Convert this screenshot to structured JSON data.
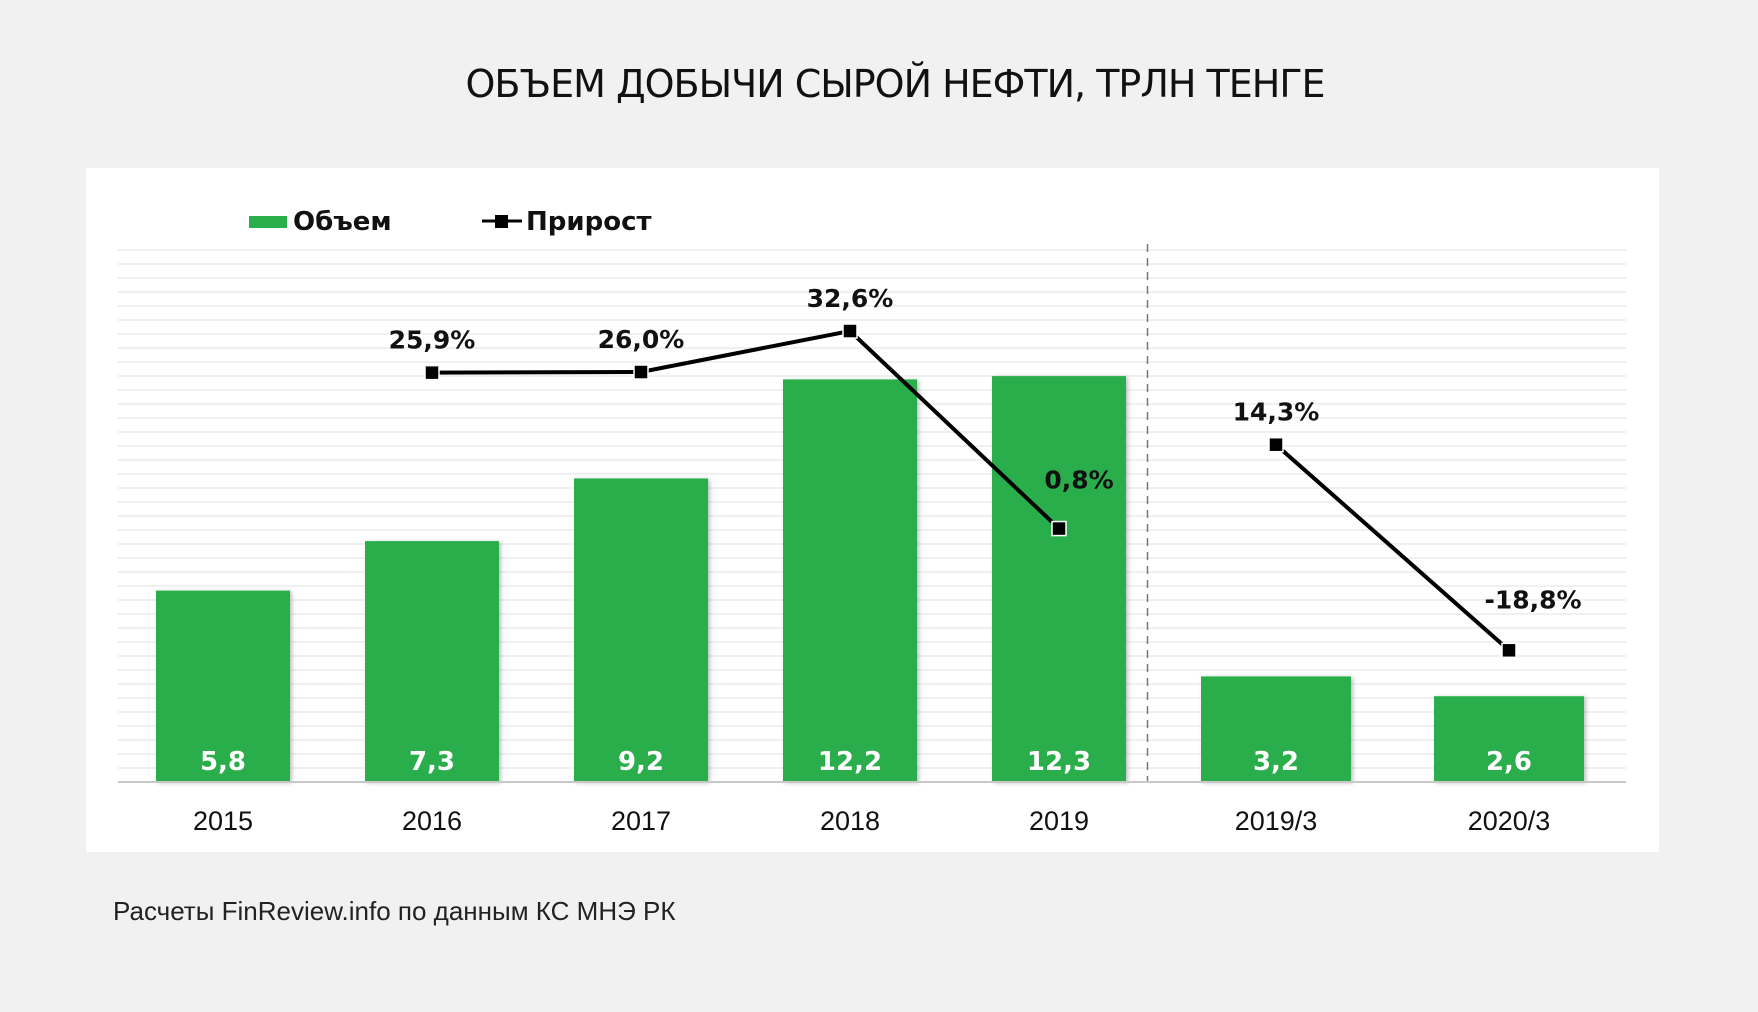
{
  "title": "ОБЪЕМ ДОБЫЧИ СЫРОЙ НЕФТИ, ТРЛН ТЕНГЕ",
  "source": "Расчеты FinReview.info по данным КС МНЭ РК",
  "colors": {
    "bar": "#2bae4c",
    "line": "#000000",
    "background": "#f1f1f1",
    "panel": "#ffffff"
  },
  "chart_data": {
    "type": "bar",
    "categories": [
      "2015",
      "2016",
      "2017",
      "2018",
      "2019",
      "2019/3",
      "2020/3"
    ],
    "ylim": [
      0,
      16
    ],
    "y2lim": [
      -40,
      45
    ],
    "grid": true,
    "legend_position": "top-left",
    "series": [
      {
        "name": "Объем",
        "type": "bar",
        "axis": "left",
        "values": [
          5.8,
          7.3,
          9.2,
          12.2,
          12.3,
          3.2,
          2.6
        ],
        "labels": [
          "5,8",
          "7,3",
          "9,2",
          "12,2",
          "12,3",
          "3,2",
          "2,6"
        ]
      },
      {
        "name": "Прирост",
        "type": "line",
        "axis": "right",
        "values": [
          null,
          25.9,
          26.0,
          32.6,
          0.8,
          14.3,
          -18.8
        ],
        "labels": [
          "",
          "25,9%",
          "26,0%",
          "32,6%",
          "0,8%",
          "14,3%",
          "-18,8%"
        ],
        "segments": [
          [
            1,
            4
          ],
          [
            5,
            6
          ]
        ]
      }
    ],
    "separator_after_category": 4
  }
}
